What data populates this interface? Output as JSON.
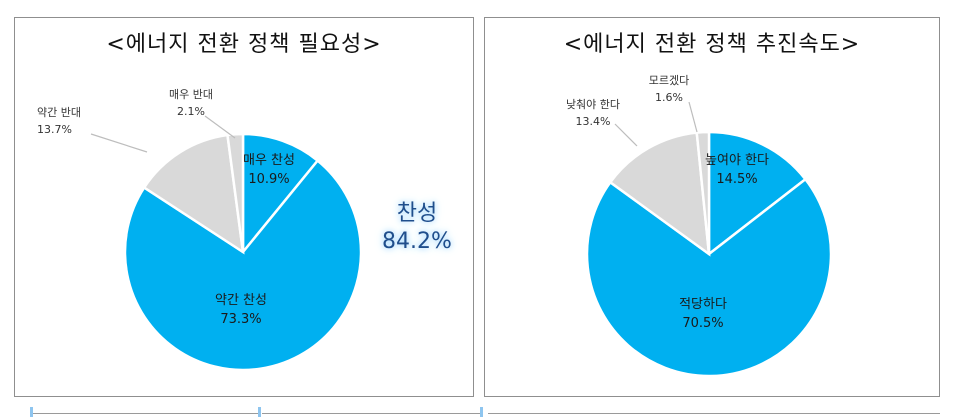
{
  "charts": [
    {
      "title": "<에너지 전환 정책 필요성>",
      "big_label": {
        "name": "찬성",
        "value": "84.2%"
      }
    },
    {
      "title": "<에너지 전환 정책 추진속도>"
    }
  ],
  "colors": {
    "blue": "#00B0F0",
    "grey": "#D9D9D9",
    "callout_text": "#1F4E8C"
  },
  "chart_data": [
    {
      "type": "pie",
      "title": "<에너지 전환 정책 필요성>",
      "slices": [
        {
          "label": "매우 찬성",
          "value": 10.9,
          "display": "10.9%",
          "color": "#00B0F0"
        },
        {
          "label": "약간 찬성",
          "value": 73.3,
          "display": "73.3%",
          "color": "#00B0F0"
        },
        {
          "label": "약간 반대",
          "value": 13.7,
          "display": "13.7%",
          "color": "#D9D9D9"
        },
        {
          "label": "매우 반대",
          "value": 2.1,
          "display": "2.1%",
          "color": "#D9D9D9"
        }
      ],
      "annotations": [
        {
          "label": "찬성",
          "value": "84.2%"
        }
      ]
    },
    {
      "type": "pie",
      "title": "<에너지 전환 정책 추진속도>",
      "slices": [
        {
          "label": "높여야 한다",
          "value": 14.5,
          "display": "14.5%",
          "color": "#00B0F0"
        },
        {
          "label": "적당하다",
          "value": 70.5,
          "display": "70.5%",
          "color": "#00B0F0"
        },
        {
          "label": "낮춰야 한다",
          "value": 13.4,
          "display": "13.4%",
          "color": "#D9D9D9"
        },
        {
          "label": "모르겠다",
          "value": 1.6,
          "display": "1.6%",
          "color": "#D9D9D9"
        }
      ]
    }
  ]
}
